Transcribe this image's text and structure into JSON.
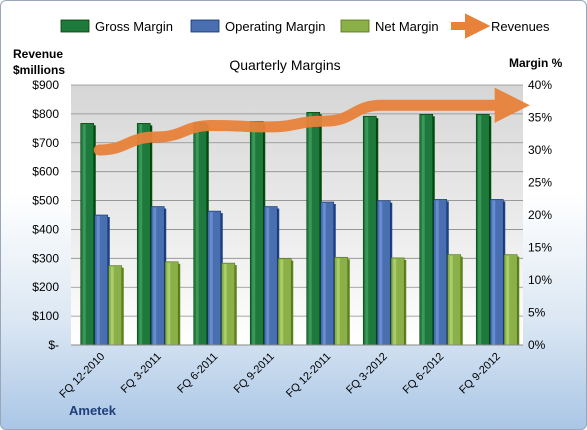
{
  "chart_data": {
    "type": "bar",
    "title": "Quarterly Margins",
    "left_axis_title": "Revenue $millions",
    "right_axis_title": "Margin %",
    "footer": "Ametek",
    "categories": [
      "FQ 12-2010",
      "FQ 3-2011",
      "FQ 6-2011",
      "FQ 9-2011",
      "FQ 12-2011",
      "FQ 3-2012",
      "FQ 6-2012",
      "FQ 9-2012"
    ],
    "left_ticks": [
      "$-",
      "$100",
      "$200",
      "$300",
      "$400",
      "$500",
      "$600",
      "$700",
      "$800",
      "$900"
    ],
    "right_ticks": [
      "0%",
      "5%",
      "10%",
      "15%",
      "20%",
      "25%",
      "30%",
      "35%",
      "40%"
    ],
    "ylim_left": [
      0,
      900
    ],
    "ylim_right": [
      0,
      40
    ],
    "series": [
      {
        "name": "Gross Margin",
        "axis": "right",
        "kind": "bar",
        "color": "#1e7a3c",
        "values": [
          34.1,
          34.1,
          34.2,
          34.4,
          35.8,
          35.2,
          35.5,
          35.5
        ]
      },
      {
        "name": "Operating Margin",
        "axis": "right",
        "kind": "bar",
        "color": "#4a6fb0",
        "values": [
          20.0,
          21.3,
          20.6,
          21.3,
          22.0,
          22.2,
          22.4,
          22.4
        ]
      },
      {
        "name": "Net Margin",
        "axis": "right",
        "kind": "bar",
        "color": "#8bb04a",
        "values": [
          12.2,
          12.8,
          12.6,
          13.3,
          13.5,
          13.4,
          13.9,
          13.9
        ]
      },
      {
        "name": "Revenues",
        "axis": "left",
        "kind": "line",
        "color": "#e8823a",
        "values": [
          675,
          720,
          760,
          755,
          775,
          830,
          830,
          830
        ]
      }
    ],
    "grid": true,
    "legend_position": "top"
  }
}
